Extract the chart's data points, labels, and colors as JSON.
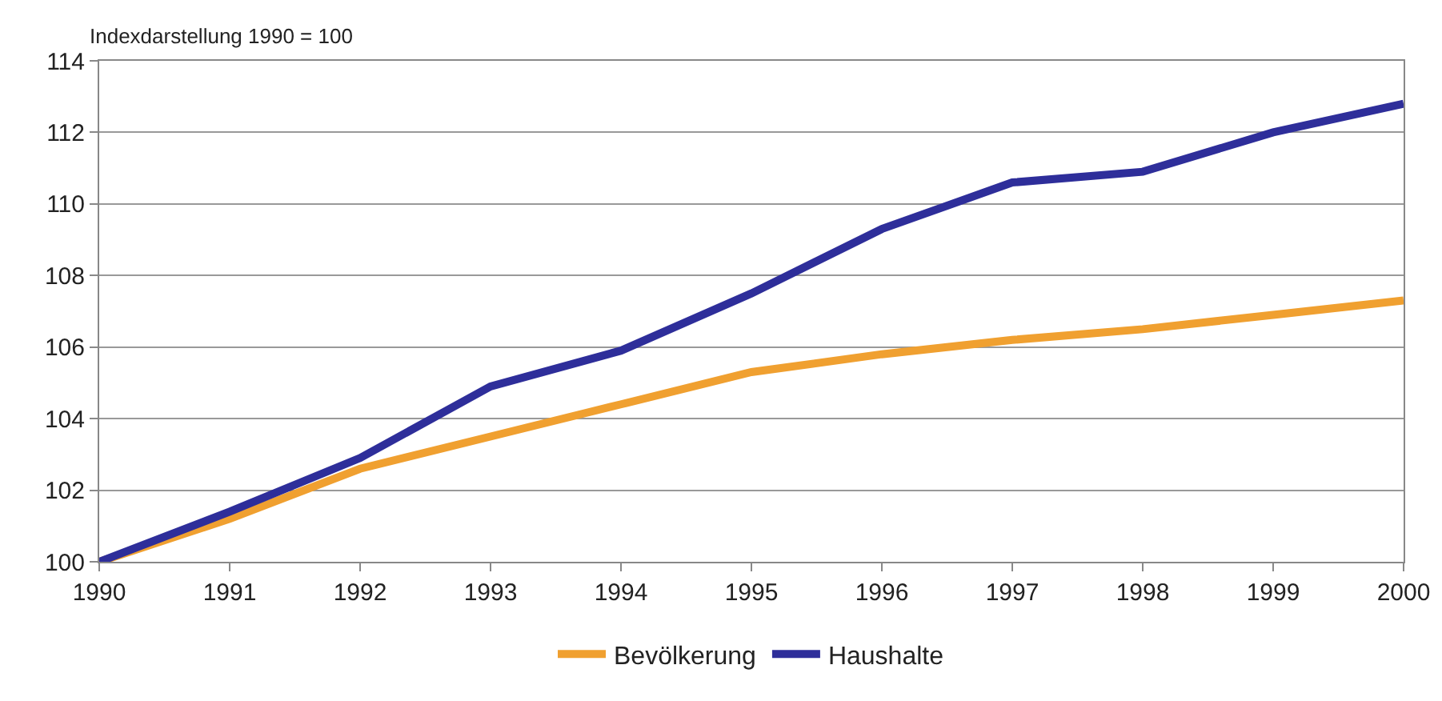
{
  "chart_data": {
    "type": "line",
    "ylabel": "Indexdarstellung 1990 = 100",
    "x": [
      1990,
      1991,
      1992,
      1993,
      1994,
      1995,
      1996,
      1997,
      1998,
      1999,
      2000
    ],
    "series": [
      {
        "name": "Bevölkerung",
        "color": "#f0a030",
        "values": [
          100,
          101.2,
          102.6,
          103.5,
          104.4,
          105.3,
          105.8,
          106.2,
          106.5,
          106.9,
          107.3
        ]
      },
      {
        "name": "Haushalte",
        "color": "#2e2e9a",
        "values": [
          100,
          101.4,
          102.9,
          104.9,
          105.9,
          107.5,
          109.3,
          110.6,
          110.9,
          112.0,
          112.8
        ]
      }
    ],
    "xlim": [
      1990,
      2000
    ],
    "xticks": [
      1990,
      1991,
      1992,
      1993,
      1994,
      1995,
      1996,
      1997,
      1998,
      1999,
      2000
    ],
    "ylim": [
      100,
      114
    ],
    "yticks": [
      100,
      102,
      104,
      106,
      108,
      110,
      112,
      114
    ],
    "grid": "y",
    "legend": "bottom",
    "marker": "none",
    "line_style": "solid"
  }
}
